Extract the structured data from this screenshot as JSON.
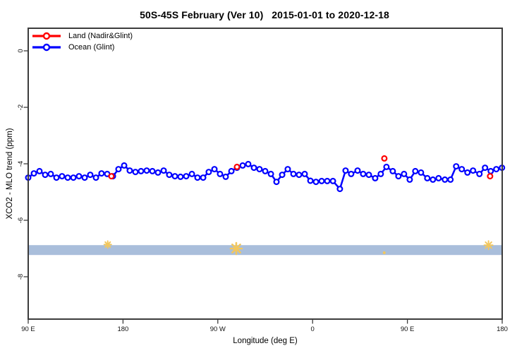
{
  "title": "50S-45S February (Ver 10)   2015-01-01 to 2020-12-18",
  "legend": {
    "items": [
      {
        "label": "Land (Nadir&Glint)",
        "color": "#FF0000"
      },
      {
        "label": "Ocean (Glint)",
        "color": "#0000FF"
      }
    ]
  },
  "colors": {
    "land": "#FF0000",
    "ocean": "#0000FF",
    "band": "#A9BEDB",
    "flag": "#F2C75E",
    "frame": "#3C3C3C"
  },
  "chart_data": {
    "type": "line",
    "title": "50S-45S February (Ver 10)   2015-01-01 to 2020-12-18",
    "xlabel": "Longitude (deg E)",
    "ylabel": "XCO2 - MLO trend (ppm)",
    "xlim": [
      90,
      540
    ],
    "ylim": [
      -9.5,
      0.8
    ],
    "grid": false,
    "legend_position": "top-left",
    "x_ticks": [
      {
        "x": 90,
        "label": "90 E"
      },
      {
        "x": 180,
        "label": "180"
      },
      {
        "x": 270,
        "label": "90 W"
      },
      {
        "x": 360,
        "label": "0"
      },
      {
        "x": 450,
        "label": "90 E"
      },
      {
        "x": 540,
        "label": "180"
      }
    ],
    "y_ticks": [
      {
        "v": 0,
        "label": "0"
      },
      {
        "v": -2,
        "label": "-2"
      },
      {
        "v": -4,
        "label": "-4"
      },
      {
        "v": -6,
        "label": "-6"
      },
      {
        "v": -8,
        "label": "-8"
      }
    ],
    "band": {
      "from": -6.88,
      "to": -7.23
    },
    "series": [
      {
        "name": "Ocean (Glint)",
        "marker": "open-circle",
        "line": true,
        "points": [
          [
            90,
            -4.49
          ],
          [
            95.4,
            -4.34
          ],
          [
            100.7,
            -4.26
          ],
          [
            106.1,
            -4.39
          ],
          [
            111.4,
            -4.36
          ],
          [
            116.8,
            -4.49
          ],
          [
            122.1,
            -4.44
          ],
          [
            127.5,
            -4.49
          ],
          [
            132.9,
            -4.49
          ],
          [
            138.2,
            -4.44
          ],
          [
            143.6,
            -4.49
          ],
          [
            148.9,
            -4.39
          ],
          [
            154.3,
            -4.49
          ],
          [
            159.6,
            -4.34
          ],
          [
            165,
            -4.36
          ],
          [
            170.4,
            -4.44
          ],
          [
            175.7,
            -4.19
          ],
          [
            181.1,
            -4.06
          ],
          [
            186.4,
            -4.24
          ],
          [
            191.8,
            -4.29
          ],
          [
            197.1,
            -4.26
          ],
          [
            202.5,
            -4.24
          ],
          [
            207.9,
            -4.26
          ],
          [
            213.2,
            -4.31
          ],
          [
            218.6,
            -4.24
          ],
          [
            223.9,
            -4.39
          ],
          [
            229.3,
            -4.44
          ],
          [
            234.6,
            -4.46
          ],
          [
            240,
            -4.44
          ],
          [
            245.4,
            -4.36
          ],
          [
            250.7,
            -4.49
          ],
          [
            256.1,
            -4.49
          ],
          [
            261.4,
            -4.29
          ],
          [
            266.8,
            -4.19
          ],
          [
            272.1,
            -4.36
          ],
          [
            277.5,
            -4.46
          ],
          [
            282.9,
            -4.26
          ],
          [
            288.2,
            -4.14
          ],
          [
            293.6,
            -4.06
          ],
          [
            298.9,
            -4.01
          ],
          [
            304.3,
            -4.14
          ],
          [
            309.6,
            -4.19
          ],
          [
            315,
            -4.26
          ],
          [
            320.4,
            -4.36
          ],
          [
            325.7,
            -4.64
          ],
          [
            331.1,
            -4.39
          ],
          [
            336.4,
            -4.19
          ],
          [
            341.8,
            -4.36
          ],
          [
            347.1,
            -4.39
          ],
          [
            352.5,
            -4.36
          ],
          [
            357.9,
            -4.6
          ],
          [
            363.2,
            -4.64
          ],
          [
            368.6,
            -4.61
          ],
          [
            373.9,
            -4.61
          ],
          [
            379.3,
            -4.61
          ],
          [
            385.9,
            -4.89
          ],
          [
            391.3,
            -4.24
          ],
          [
            396.6,
            -4.36
          ],
          [
            402.7,
            -4.24
          ],
          [
            408,
            -4.36
          ],
          [
            413.4,
            -4.39
          ],
          [
            419.4,
            -4.51
          ],
          [
            424.7,
            -4.36
          ],
          [
            430.1,
            -4.11
          ],
          [
            436.1,
            -4.26
          ],
          [
            441.5,
            -4.44
          ],
          [
            446.8,
            -4.36
          ],
          [
            452.2,
            -4.56
          ],
          [
            457.5,
            -4.26
          ],
          [
            462.9,
            -4.31
          ],
          [
            468.9,
            -4.51
          ],
          [
            474.2,
            -4.56
          ],
          [
            479.6,
            -4.51
          ],
          [
            485.6,
            -4.56
          ],
          [
            490.9,
            -4.56
          ],
          [
            496.3,
            -4.09
          ],
          [
            501.6,
            -4.19
          ],
          [
            507,
            -4.31
          ],
          [
            512.3,
            -4.24
          ],
          [
            518.4,
            -4.36
          ],
          [
            523.7,
            -4.14
          ],
          [
            529.1,
            -4.26
          ],
          [
            534.4,
            -4.19
          ],
          [
            539.8,
            -4.14
          ]
        ]
      },
      {
        "name": "Land (Nadir&Glint)",
        "marker": "open-circle",
        "line": false,
        "points": [
          [
            169,
            -4.44
          ],
          [
            288.2,
            -4.11
          ],
          [
            428.1,
            -3.81
          ],
          [
            528.5,
            -4.44
          ]
        ]
      }
    ],
    "annotations": [
      {
        "x": 165.5,
        "v": -6.86,
        "style": "asterisk",
        "size": 5
      },
      {
        "x": 287.5,
        "v": -7.0,
        "style": "asterisk",
        "size": 8
      },
      {
        "x": 428,
        "v": -7.15,
        "style": "dot",
        "size": 2
      },
      {
        "x": 527,
        "v": -6.88,
        "style": "asterisk",
        "size": 6
      }
    ]
  }
}
